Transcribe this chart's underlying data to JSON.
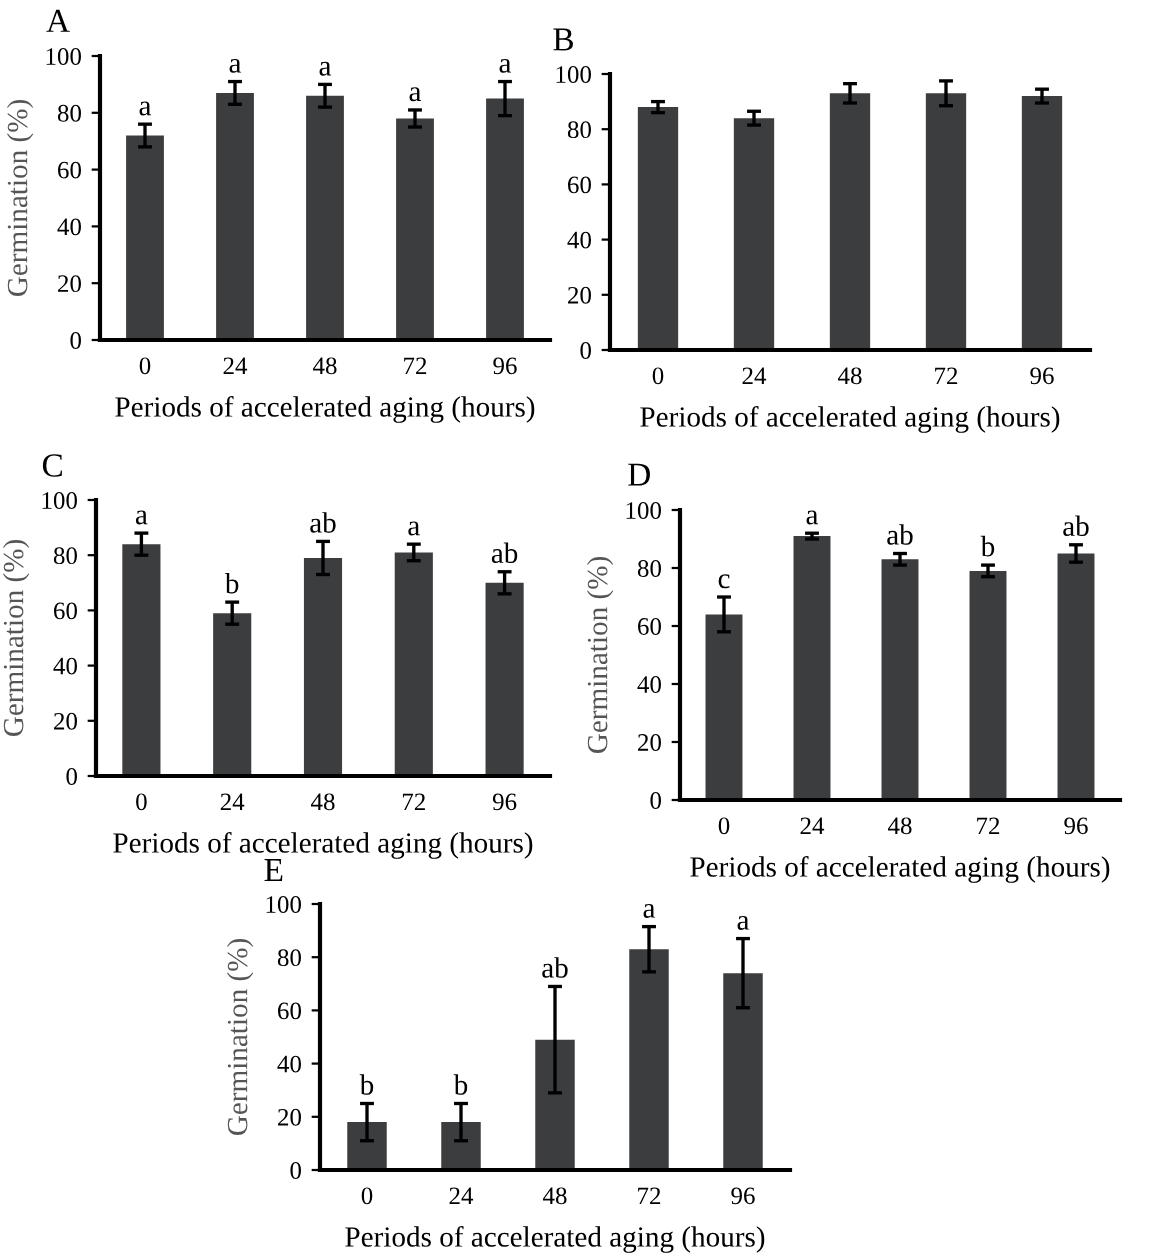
{
  "chart_data": [
    {
      "type": "bar",
      "title": "A",
      "xlabel": "Periods of accelerated aging (hours)",
      "ylabel": "Germination (%)",
      "categories": [
        "0",
        "24",
        "48",
        "72",
        "96"
      ],
      "values": [
        72,
        87,
        86,
        78,
        85
      ],
      "errors": [
        4,
        4,
        4,
        3,
        6
      ],
      "value_labels": [
        "a",
        "a",
        "a",
        "a",
        "a"
      ],
      "color": "#3b3d3f",
      "ylim": [
        0,
        100
      ],
      "yticks": [
        0,
        20,
        40,
        60,
        80,
        100
      ],
      "grid": false,
      "legend": false
    },
    {
      "type": "bar",
      "title": "B",
      "xlabel": "Periods of accelerated aging (hours)",
      "categories": [
        "0",
        "24",
        "48",
        "72",
        "96"
      ],
      "values": [
        88,
        84,
        93,
        93,
        92
      ],
      "errors": [
        2,
        2.5,
        3.5,
        4.5,
        2.5
      ],
      "color": "#3b3d3f",
      "ylim": [
        0,
        100
      ],
      "yticks": [
        0,
        20,
        40,
        60,
        80,
        100
      ],
      "grid": false,
      "legend": false
    },
    {
      "type": "bar",
      "title": "C",
      "xlabel": "Periods of accelerated aging (hours)",
      "ylabel": "Germination (%)",
      "categories": [
        "0",
        "24",
        "48",
        "72",
        "96"
      ],
      "values": [
        84,
        59,
        79,
        81,
        70
      ],
      "errors": [
        4,
        4,
        6,
        3,
        4
      ],
      "value_labels": [
        "a",
        "b",
        "ab",
        "a",
        "ab"
      ],
      "color": "#3b3d3f",
      "ylim": [
        0,
        100
      ],
      "yticks": [
        0,
        20,
        40,
        60,
        80,
        100
      ],
      "grid": false,
      "legend": false
    },
    {
      "type": "bar",
      "title": "D",
      "xlabel": "Periods of accelerated aging (hours)",
      "ylabel": "Germination (%)",
      "categories": [
        "0",
        "24",
        "48",
        "72",
        "96"
      ],
      "values": [
        64,
        91,
        83,
        79,
        85
      ],
      "errors": [
        6,
        1,
        2,
        2,
        3
      ],
      "value_labels": [
        "c",
        "a",
        "ab",
        "b",
        "ab"
      ],
      "color": "#3b3d3f",
      "ylim": [
        0,
        100
      ],
      "yticks": [
        0,
        20,
        40,
        60,
        80,
        100
      ],
      "grid": false,
      "legend": false
    },
    {
      "type": "bar",
      "title": "E",
      "xlabel": "Periods of accelerated aging (hours)",
      "ylabel": "Germination (%)",
      "categories": [
        "0",
        "24",
        "48",
        "72",
        "96"
      ],
      "values": [
        18,
        18,
        49,
        83,
        74
      ],
      "errors": [
        7,
        7,
        20,
        8.5,
        13
      ],
      "value_labels": [
        "b",
        "b",
        "ab",
        "a",
        "a"
      ],
      "color": "#3b3d3f",
      "ylim": [
        0,
        100
      ],
      "yticks": [
        0,
        20,
        40,
        60,
        80,
        100
      ],
      "grid": false,
      "legend": false
    }
  ]
}
